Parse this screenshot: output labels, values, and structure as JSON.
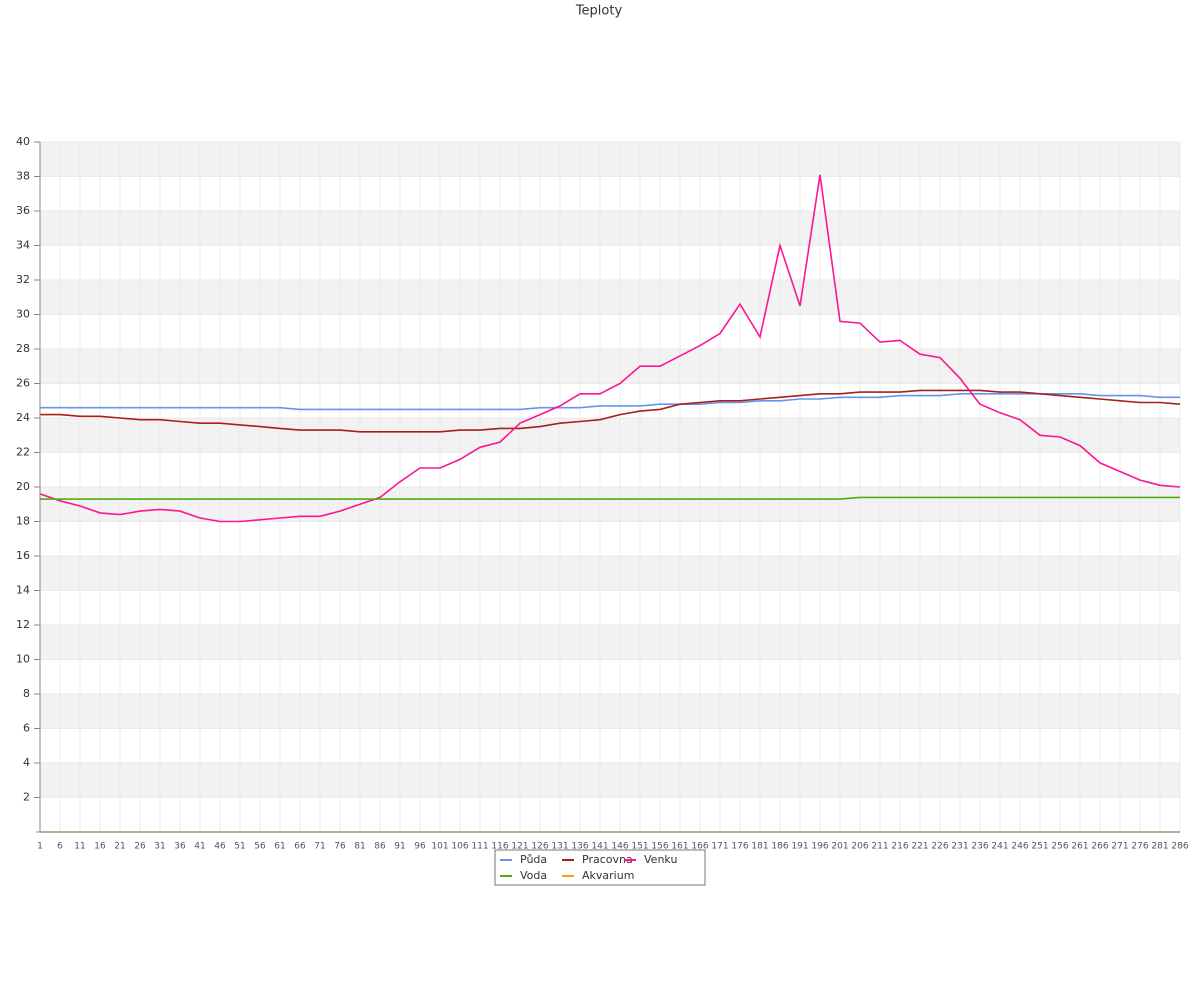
{
  "chart_data": {
    "type": "line",
    "title": "Teploty",
    "x": [
      1,
      6,
      11,
      16,
      21,
      26,
      31,
      36,
      41,
      46,
      51,
      56,
      61,
      66,
      71,
      76,
      81,
      86,
      91,
      96,
      101,
      106,
      111,
      116,
      121,
      126,
      131,
      136,
      141,
      146,
      151,
      156,
      161,
      166,
      171,
      176,
      181,
      186,
      191,
      196,
      201,
      206,
      211,
      216,
      221,
      226,
      231,
      236,
      241,
      246,
      251,
      256,
      261,
      266,
      271,
      276,
      281,
      286
    ],
    "xlim": [
      1,
      286
    ],
    "ylim": [
      0,
      40
    ],
    "yticks": [
      2,
      4,
      6,
      8,
      10,
      12,
      14,
      16,
      18,
      20,
      22,
      24,
      26,
      28,
      30,
      32,
      34,
      36,
      38,
      40
    ],
    "grid": true,
    "series": [
      {
        "name": "Půda",
        "color": "#6495ed",
        "values": [
          24.6,
          24.6,
          24.6,
          24.6,
          24.6,
          24.6,
          24.6,
          24.6,
          24.6,
          24.6,
          24.6,
          24.6,
          24.6,
          24.5,
          24.5,
          24.5,
          24.5,
          24.5,
          24.5,
          24.5,
          24.5,
          24.5,
          24.5,
          24.5,
          24.5,
          24.6,
          24.6,
          24.6,
          24.7,
          24.7,
          24.7,
          24.8,
          24.8,
          24.8,
          24.9,
          24.9,
          25.0,
          25.0,
          25.1,
          25.1,
          25.2,
          25.2,
          25.2,
          25.3,
          25.3,
          25.3,
          25.4,
          25.4,
          25.4,
          25.4,
          25.4,
          25.4,
          25.4,
          25.3,
          25.3,
          25.3,
          25.2,
          25.2
        ]
      },
      {
        "name": "Pracovna",
        "color": "#a8201a",
        "values": [
          24.2,
          24.2,
          24.1,
          24.1,
          24.0,
          23.9,
          23.9,
          23.8,
          23.7,
          23.7,
          23.6,
          23.5,
          23.4,
          23.3,
          23.3,
          23.3,
          23.2,
          23.2,
          23.2,
          23.2,
          23.2,
          23.3,
          23.3,
          23.4,
          23.4,
          23.5,
          23.7,
          23.8,
          23.9,
          24.2,
          24.4,
          24.5,
          24.8,
          24.9,
          25.0,
          25.0,
          25.1,
          25.2,
          25.3,
          25.4,
          25.4,
          25.5,
          25.5,
          25.5,
          25.6,
          25.6,
          25.6,
          25.6,
          25.5,
          25.5,
          25.4,
          25.3,
          25.2,
          25.1,
          25.0,
          24.9,
          24.9,
          24.8
        ]
      },
      {
        "name": "Venku",
        "color": "#ff1493",
        "values": [
          19.6,
          19.2,
          18.9,
          18.5,
          18.4,
          18.6,
          18.7,
          18.6,
          18.2,
          18.0,
          18.0,
          18.1,
          18.2,
          18.3,
          18.3,
          18.6,
          19.0,
          19.4,
          20.3,
          21.1,
          21.1,
          21.6,
          22.3,
          22.6,
          23.7,
          24.2,
          24.7,
          25.4,
          25.4,
          26.0,
          27.0,
          27.0,
          27.6,
          28.2,
          28.9,
          30.6,
          28.7,
          34.0,
          30.5,
          38.1,
          29.6,
          29.5,
          28.4,
          28.5,
          27.7,
          27.5,
          26.3,
          24.8,
          24.3,
          23.9,
          23.0,
          22.9,
          22.4,
          21.4,
          20.9,
          20.4,
          20.1,
          20.0
        ]
      },
      {
        "name": "Voda",
        "color": "#4caf10",
        "values": [
          19.3,
          19.3,
          19.3,
          19.3,
          19.3,
          19.3,
          19.3,
          19.3,
          19.3,
          19.3,
          19.3,
          19.3,
          19.3,
          19.3,
          19.3,
          19.3,
          19.3,
          19.3,
          19.3,
          19.3,
          19.3,
          19.3,
          19.3,
          19.3,
          19.3,
          19.3,
          19.3,
          19.3,
          19.3,
          19.3,
          19.3,
          19.3,
          19.3,
          19.3,
          19.3,
          19.3,
          19.3,
          19.3,
          19.3,
          19.3,
          19.3,
          19.4,
          19.4,
          19.4,
          19.4,
          19.4,
          19.4,
          19.4,
          19.4,
          19.4,
          19.4,
          19.4,
          19.4,
          19.4,
          19.4,
          19.4,
          19.4,
          19.4
        ]
      },
      {
        "name": "Akvarium",
        "color": "#f0a020",
        "values": [
          0,
          0,
          0,
          0,
          0,
          0,
          0,
          0,
          0,
          0,
          0,
          0,
          0,
          0,
          0,
          0,
          0,
          0,
          0,
          0,
          0,
          0,
          0,
          0,
          0,
          0,
          0,
          0,
          0,
          0,
          0,
          0,
          0,
          0,
          0,
          0,
          0,
          0,
          0,
          0,
          0,
          0,
          0,
          0,
          0,
          0,
          0,
          0,
          0,
          0,
          0,
          0,
          0,
          0,
          0,
          0,
          0,
          0
        ]
      }
    ]
  }
}
